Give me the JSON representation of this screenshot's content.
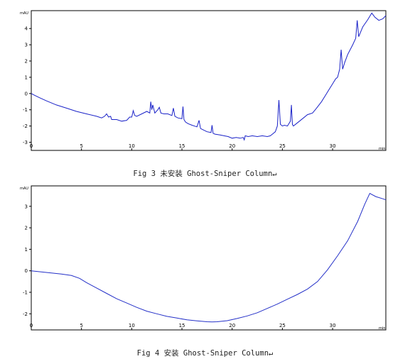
{
  "captions": [
    "Fig 3 未安装 Ghost-Sniper Column↵",
    "Fig 4 安装 Ghost-Sniper Column↵"
  ],
  "chart_data": [
    {
      "type": "line",
      "y_unit": "mAU",
      "x_unit": "min",
      "x_ticks": [
        0,
        5,
        10,
        15,
        20,
        25,
        30
      ],
      "y_ticks": [
        -3,
        -2,
        -1,
        0,
        1,
        2,
        3,
        4
      ],
      "xlim": [
        0,
        35.3
      ],
      "ylim": [
        -3.5,
        5.1
      ],
      "grid": false,
      "line_color": "#1a22c8",
      "series": [
        {
          "x": [
            0,
            0.3,
            0.8,
            1.5,
            2.5,
            3.5,
            4.5,
            5.5,
            6.5,
            7.0,
            7.3,
            7.5,
            7.7,
            7.9,
            8.0,
            8.5,
            9.0,
            9.5,
            9.8,
            10.0,
            10.15,
            10.3,
            10.5,
            11.0,
            11.5,
            11.8,
            11.9,
            12.0,
            12.1,
            12.3,
            12.6,
            12.75,
            12.9,
            13.2,
            13.6,
            14.0,
            14.15,
            14.3,
            14.6,
            15.0,
            15.1,
            15.2,
            15.35,
            15.6,
            16.0,
            16.5,
            16.7,
            16.85,
            17.0,
            17.5,
            17.9,
            18.0,
            18.1,
            18.3,
            18.8,
            19.2,
            19.6,
            20.0,
            20.4,
            20.8,
            21.1,
            21.2,
            21.3,
            21.6,
            22.0,
            22.5,
            23.0,
            23.5,
            23.8,
            24.0,
            24.3,
            24.5,
            24.65,
            24.8,
            25.0,
            25.2,
            25.5,
            25.8,
            25.9,
            26.0,
            26.1,
            26.3,
            26.7,
            27.1,
            27.5,
            28.0,
            28.4,
            28.9,
            29.3,
            29.7,
            30.0,
            30.3,
            30.5,
            30.7,
            30.85,
            31.0,
            31.2,
            31.5,
            32.0,
            32.3,
            32.45,
            32.6,
            33.0,
            33.5,
            33.9,
            34.2,
            34.6,
            35.0,
            35.3
          ],
          "y": [
            0,
            -0.1,
            -0.25,
            -0.45,
            -0.7,
            -0.9,
            -1.1,
            -1.25,
            -1.4,
            -1.5,
            -1.4,
            -1.25,
            -1.45,
            -1.4,
            -1.6,
            -1.6,
            -1.7,
            -1.65,
            -1.45,
            -1.45,
            -1.05,
            -1.35,
            -1.4,
            -1.25,
            -1.1,
            -1.2,
            -0.5,
            -1.0,
            -0.7,
            -1.2,
            -1.0,
            -0.85,
            -1.2,
            -1.25,
            -1.25,
            -1.35,
            -0.9,
            -1.4,
            -1.5,
            -1.55,
            -0.8,
            -1.6,
            -1.75,
            -1.85,
            -1.95,
            -2.05,
            -1.65,
            -2.15,
            -2.2,
            -2.35,
            -2.4,
            -1.95,
            -2.45,
            -2.5,
            -2.55,
            -2.6,
            -2.65,
            -2.75,
            -2.7,
            -2.75,
            -2.7,
            -2.85,
            -2.6,
            -2.65,
            -2.6,
            -2.65,
            -2.6,
            -2.65,
            -2.6,
            -2.5,
            -2.35,
            -2.0,
            -0.4,
            -1.9,
            -2.0,
            -1.95,
            -2.0,
            -1.7,
            -0.7,
            -1.9,
            -2.0,
            -1.9,
            -1.7,
            -1.5,
            -1.3,
            -1.2,
            -0.9,
            -0.5,
            -0.1,
            0.3,
            0.6,
            0.9,
            1.0,
            1.5,
            2.7,
            1.5,
            1.9,
            2.4,
            3.0,
            3.4,
            4.5,
            3.5,
            4.1,
            4.55,
            4.95,
            4.7,
            4.5,
            4.6,
            4.8
          ]
        }
      ]
    },
    {
      "type": "line",
      "y_unit": "mAU",
      "x_unit": "min",
      "x_ticks": [
        0,
        5,
        10,
        15,
        20,
        25,
        30
      ],
      "y_ticks": [
        -2,
        -1,
        0,
        1,
        2,
        3
      ],
      "xlim": [
        0,
        35.3
      ],
      "ylim": [
        -2.75,
        3.95
      ],
      "grid": false,
      "line_color": "#2430c8",
      "series": [
        {
          "x": [
            0,
            1,
            2,
            3,
            4,
            4.8,
            5.5,
            6.5,
            7.5,
            8.5,
            9.5,
            10.5,
            11.5,
            12.5,
            13.5,
            14.5,
            15.5,
            16.5,
            17.5,
            18.0,
            18.5,
            19.5,
            20.5,
            21.5,
            22.5,
            23.5,
            24.5,
            25.5,
            26.5,
            27.5,
            28.5,
            29.5,
            30.5,
            31.5,
            32.5,
            33.2,
            33.7,
            34.3,
            35.0,
            35.3
          ],
          "y": [
            0,
            -0.05,
            -0.1,
            -0.15,
            -0.22,
            -0.35,
            -0.55,
            -0.8,
            -1.05,
            -1.3,
            -1.5,
            -1.7,
            -1.88,
            -2.0,
            -2.12,
            -2.2,
            -2.28,
            -2.33,
            -2.37,
            -2.38,
            -2.37,
            -2.32,
            -2.22,
            -2.1,
            -1.95,
            -1.75,
            -1.55,
            -1.32,
            -1.1,
            -0.85,
            -0.5,
            0.05,
            0.7,
            1.4,
            2.3,
            3.1,
            3.6,
            3.45,
            3.35,
            3.3
          ]
        }
      ]
    }
  ]
}
